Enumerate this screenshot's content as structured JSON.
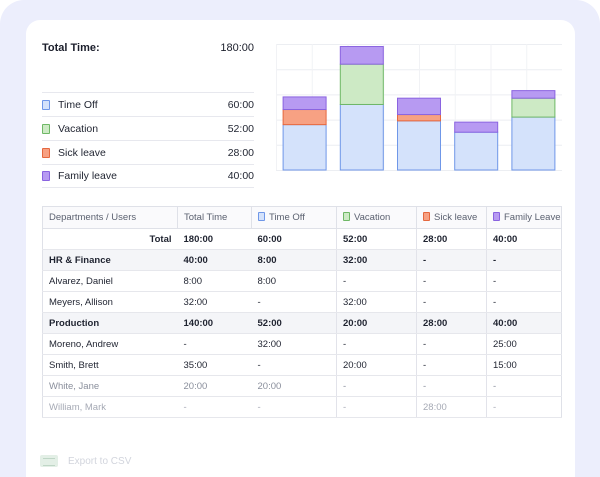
{
  "summary": {
    "total_label": "Total Time:",
    "total_value": "180:00",
    "rows": [
      {
        "label": "Time Off",
        "value": "60:00",
        "fill": "#d4e2fb",
        "stroke": "#6f97e8"
      },
      {
        "label": "Vacation",
        "value": "52:00",
        "fill": "#cdeac5",
        "stroke": "#6fb866"
      },
      {
        "label": "Sick leave",
        "value": "28:00",
        "fill": "#f7a183",
        "stroke": "#e5683f"
      },
      {
        "label": "Family leave",
        "value": "40:00",
        "fill": "#b79af2",
        "stroke": "#8a63e0"
      }
    ]
  },
  "chart_data": {
    "type": "bar",
    "stacked": true,
    "categories": [
      "",
      "",
      "",
      "",
      ""
    ],
    "series": [
      {
        "color": "#d4e2fb",
        "stroke": "#6f97e8",
        "values": [
          36,
          52,
          39,
          30,
          42
        ]
      },
      {
        "color": "#cdeac5",
        "stroke": "#6fb866",
        "values": [
          0,
          32,
          0,
          0,
          15
        ]
      },
      {
        "color": "#f7a183",
        "stroke": "#e5683f",
        "values": [
          12,
          0,
          5,
          0,
          0
        ]
      },
      {
        "color": "#b79af2",
        "stroke": "#8a63e0",
        "values": [
          10,
          14,
          13,
          8,
          6
        ]
      }
    ],
    "ylim": [
      0,
      100
    ],
    "grid": true
  },
  "table": {
    "headers": [
      {
        "label": "Departments / Users",
        "swatch": null
      },
      {
        "label": "Total Time",
        "swatch": null
      },
      {
        "label": "Time Off",
        "swatch": {
          "fill": "#d4e2fb",
          "stroke": "#6f97e8"
        }
      },
      {
        "label": "Vacation",
        "swatch": {
          "fill": "#cdeac5",
          "stroke": "#6fb866"
        }
      },
      {
        "label": "Sick leave",
        "swatch": {
          "fill": "#f7a183",
          "stroke": "#e5683f"
        }
      },
      {
        "label": "Family Leave",
        "swatch": {
          "fill": "#b79af2",
          "stroke": "#8a63e0"
        }
      }
    ],
    "rows": [
      {
        "kind": "total",
        "cells": [
          "Total",
          "180:00",
          "60:00",
          "52:00",
          "28:00",
          "40:00"
        ]
      },
      {
        "kind": "group",
        "cells": [
          "HR & Finance",
          "40:00",
          "8:00",
          "32:00",
          "-",
          "-"
        ]
      },
      {
        "kind": "user",
        "cells": [
          "Alvarez, Daniel",
          "8:00",
          "8:00",
          "-",
          "-",
          "-"
        ]
      },
      {
        "kind": "user",
        "cells": [
          "Meyers, Allison",
          "32:00",
          "-",
          "32:00",
          "-",
          "-"
        ]
      },
      {
        "kind": "group",
        "cells": [
          "Production",
          "140:00",
          "52:00",
          "20:00",
          "28:00",
          "40:00"
        ]
      },
      {
        "kind": "user",
        "cells": [
          "Moreno, Andrew",
          "-",
          "32:00",
          "-",
          "-",
          "25:00"
        ]
      },
      {
        "kind": "user",
        "cells": [
          "Smith, Brett",
          "35:00",
          "-",
          "20:00",
          "-",
          "15:00"
        ]
      },
      {
        "kind": "dim",
        "cells": [
          "White, Jane",
          "20:00",
          "20:00",
          "-",
          "-",
          "-"
        ]
      },
      {
        "kind": "dim2",
        "cells": [
          "William, Mark",
          "-",
          "-",
          "-",
          "28:00",
          "-"
        ]
      }
    ]
  },
  "export": {
    "label": "Export to CSV",
    "icon": "csv-file-icon"
  }
}
